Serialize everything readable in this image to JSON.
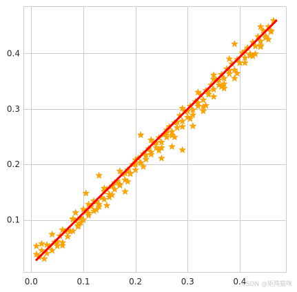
{
  "chart_data": {
    "type": "scatter",
    "title": "",
    "xlabel": "",
    "ylabel": "",
    "xlim": [
      -0.015,
      0.49
    ],
    "ylim": [
      0.005,
      0.485
    ],
    "xticks": [
      0.0,
      0.1,
      0.2,
      0.3,
      0.4
    ],
    "yticks": [
      0.1,
      0.2,
      0.3,
      0.4
    ],
    "xtick_labels": [
      "0.0",
      "0.1",
      "0.2",
      "0.3",
      "0.4"
    ],
    "ytick_labels": [
      "0.1",
      "0.2",
      "0.3",
      "0.4"
    ],
    "grid": true,
    "legend": "none",
    "series": [
      {
        "kind": "scatter",
        "marker": "star",
        "color": "#ffa500",
        "x": [
          0.01,
          0.015,
          0.02,
          0.025,
          0.03,
          0.035,
          0.04,
          0.045,
          0.05,
          0.055,
          0.06,
          0.065,
          0.07,
          0.075,
          0.08,
          0.085,
          0.09,
          0.095,
          0.1,
          0.105,
          0.11,
          0.115,
          0.12,
          0.125,
          0.13,
          0.135,
          0.14,
          0.145,
          0.15,
          0.155,
          0.16,
          0.165,
          0.17,
          0.175,
          0.18,
          0.185,
          0.19,
          0.195,
          0.2,
          0.205,
          0.21,
          0.215,
          0.22,
          0.225,
          0.23,
          0.235,
          0.24,
          0.245,
          0.25,
          0.255,
          0.26,
          0.265,
          0.27,
          0.275,
          0.28,
          0.285,
          0.29,
          0.295,
          0.3,
          0.305,
          0.31,
          0.315,
          0.32,
          0.325,
          0.33,
          0.335,
          0.34,
          0.345,
          0.35,
          0.355,
          0.36,
          0.365,
          0.37,
          0.375,
          0.38,
          0.385,
          0.39,
          0.395,
          0.4,
          0.405,
          0.41,
          0.415,
          0.42,
          0.425,
          0.43,
          0.435,
          0.44,
          0.445,
          0.45,
          0.455,
          0.46,
          0.465,
          0.01,
          0.02,
          0.03,
          0.04,
          0.05,
          0.06,
          0.07,
          0.08,
          0.09,
          0.1,
          0.11,
          0.12,
          0.13,
          0.14,
          0.15,
          0.16,
          0.17,
          0.18,
          0.19,
          0.2,
          0.21,
          0.22,
          0.23,
          0.24,
          0.25,
          0.26,
          0.27,
          0.28,
          0.29,
          0.3,
          0.31,
          0.32,
          0.33,
          0.34,
          0.35,
          0.36,
          0.37,
          0.38,
          0.39,
          0.4,
          0.41,
          0.42,
          0.43,
          0.44,
          0.45,
          0.46,
          0.08,
          0.095,
          0.11,
          0.125,
          0.14,
          0.155,
          0.17,
          0.185,
          0.2,
          0.215,
          0.23,
          0.245,
          0.26,
          0.275,
          0.29,
          0.305,
          0.32,
          0.335,
          0.35,
          0.365,
          0.38,
          0.395,
          0.41,
          0.425,
          0.44,
          0.455,
          0.29,
          0.085,
          0.13,
          0.35,
          0.44,
          0.27,
          0.31,
          0.145,
          0.21,
          0.18,
          0.33,
          0.39,
          0.06,
          0.105,
          0.25,
          0.37
        ],
        "y": [
          0.053,
          0.033,
          0.045,
          0.03,
          0.04,
          0.052,
          0.045,
          0.06,
          0.053,
          0.071,
          0.059,
          0.079,
          0.07,
          0.079,
          0.08,
          0.098,
          0.09,
          0.104,
          0.1,
          0.115,
          0.108,
          0.124,
          0.116,
          0.133,
          0.128,
          0.14,
          0.137,
          0.155,
          0.146,
          0.161,
          0.155,
          0.17,
          0.164,
          0.182,
          0.172,
          0.19,
          0.184,
          0.2,
          0.19,
          0.211,
          0.203,
          0.219,
          0.209,
          0.228,
          0.222,
          0.238,
          0.23,
          0.248,
          0.24,
          0.254,
          0.249,
          0.268,
          0.259,
          0.275,
          0.266,
          0.288,
          0.278,
          0.295,
          0.285,
          0.305,
          0.298,
          0.313,
          0.305,
          0.325,
          0.316,
          0.333,
          0.326,
          0.343,
          0.335,
          0.352,
          0.343,
          0.362,
          0.355,
          0.372,
          0.363,
          0.381,
          0.37,
          0.389,
          0.383,
          0.401,
          0.392,
          0.41,
          0.399,
          0.42,
          0.413,
          0.43,
          0.422,
          0.441,
          0.431,
          0.448,
          0.441,
          0.459,
          0.038,
          0.057,
          0.055,
          0.074,
          0.061,
          0.082,
          0.081,
          0.101,
          0.088,
          0.119,
          0.112,
          0.134,
          0.124,
          0.151,
          0.141,
          0.167,
          0.162,
          0.184,
          0.183,
          0.2,
          0.203,
          0.217,
          0.218,
          0.239,
          0.23,
          0.257,
          0.252,
          0.276,
          0.268,
          0.296,
          0.289,
          0.311,
          0.304,
          0.332,
          0.322,
          0.352,
          0.345,
          0.369,
          0.355,
          0.383,
          0.383,
          0.396,
          0.399,
          0.414,
          0.428,
          0.439,
          0.102,
          0.095,
          0.128,
          0.118,
          0.157,
          0.145,
          0.188,
          0.169,
          0.208,
          0.196,
          0.244,
          0.225,
          0.262,
          0.249,
          0.301,
          0.282,
          0.33,
          0.306,
          0.353,
          0.34,
          0.39,
          0.364,
          0.404,
          0.395,
          0.448,
          0.425,
          0.226,
          0.113,
          0.18,
          0.361,
          0.412,
          0.232,
          0.269,
          0.126,
          0.253,
          0.151,
          0.296,
          0.417,
          0.054,
          0.148,
          0.211,
          0.337
        ]
      },
      {
        "kind": "line",
        "color": "#ff0000",
        "x": [
          0.01,
          0.47
        ],
        "y": [
          0.028,
          0.459
        ]
      }
    ]
  },
  "watermark": "CSDN @矩阵猫咪"
}
